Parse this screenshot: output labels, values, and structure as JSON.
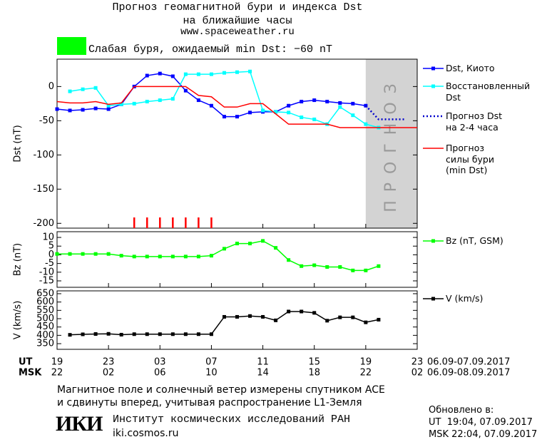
{
  "header": {
    "title": "Прогноз геомагнитной бури и индекса Dst\nна ближайшие часы",
    "url": "www.spaceweather.ru",
    "storm_color": "#00ff00",
    "storm_text": "Слабая буря, ожидаемый min Dst: −60 nT"
  },
  "chart_data": [
    {
      "type": "line",
      "y_label": "Dst (nT)",
      "xlim": [
        0,
        28
      ],
      "ylim": [
        -207,
        40
      ],
      "yticks": [
        0,
        -50,
        -100,
        -150,
        -200
      ],
      "forecast_region": {
        "x": [
          24,
          28
        ],
        "color": "#d3d3d3",
        "label": "ПРОГНОЗ"
      },
      "storm_marks": {
        "x": [
          6,
          7,
          8,
          9,
          10,
          11,
          12
        ],
        "color": "#ff0000"
      },
      "series": [
        {
          "name": "Dst, Киото",
          "color": "#0000ff",
          "marker": "square",
          "style": "solid",
          "x": [
            0,
            1,
            2,
            3,
            4,
            5,
            6,
            7,
            8,
            9,
            10,
            11,
            12,
            13,
            14,
            15,
            16,
            17,
            18,
            19,
            20,
            21,
            22,
            23,
            24
          ],
          "values": [
            -33,
            -35,
            -34,
            -32,
            -33,
            -26,
            0,
            16,
            19,
            15,
            -6,
            -20,
            -28,
            -44,
            -44,
            -38,
            -37,
            -37,
            -28,
            -22,
            -20,
            -22,
            -24,
            -25,
            -28
          ]
        },
        {
          "name": "Восстановленный\nDst",
          "color": "#00ffff",
          "marker": "square",
          "style": "solid",
          "x": [
            1,
            2,
            3,
            4,
            5,
            6,
            7,
            8,
            9,
            10,
            11,
            12,
            13,
            14,
            15,
            16,
            17,
            18,
            19,
            20,
            21,
            22,
            23,
            24,
            25
          ],
          "values": [
            -7,
            -4,
            -2,
            -28,
            -26,
            -25,
            -22,
            -20,
            -18,
            18,
            18,
            18,
            20,
            21,
            22,
            -35,
            -37,
            -38,
            -45,
            -48,
            -55,
            -30,
            -42,
            -55,
            -60
          ]
        },
        {
          "name": "Прогноз Dst\nна 2-4 часа",
          "color": "#0000cc",
          "marker": "none",
          "style": "dotted",
          "x": [
            24,
            25,
            27
          ],
          "values": [
            -28,
            -48,
            -48
          ]
        },
        {
          "name": "Прогноз\nсилы бури\n(min Dst)",
          "color": "#ff0000",
          "marker": "none",
          "style": "solid",
          "x": [
            0,
            1,
            2,
            3,
            4,
            5,
            6,
            10,
            11,
            12,
            13,
            14,
            15,
            16,
            17,
            18,
            21,
            22,
            28
          ],
          "values": [
            -22,
            -24,
            -24,
            -22,
            -26,
            -24,
            0,
            0,
            -13,
            -15,
            -30,
            -30,
            -25,
            -25,
            -40,
            -55,
            -55,
            -60,
            -60
          ]
        }
      ]
    },
    {
      "type": "line",
      "y_label": "Bz (nT)",
      "xlim": [
        0,
        28
      ],
      "ylim": [
        -18.7,
        13.3
      ],
      "yticks": [
        10,
        5,
        0,
        -5,
        -10,
        -15
      ],
      "series": [
        {
          "name": "Bz (nT, GSM)",
          "color": "#00ff00",
          "marker": "square",
          "style": "solid",
          "x": [
            0,
            1,
            2,
            3,
            4,
            5,
            6,
            7,
            8,
            9,
            10,
            11,
            12,
            13,
            14,
            15,
            16,
            17,
            18,
            19,
            20,
            21,
            22,
            23,
            24,
            25
          ],
          "values": [
            0.5,
            0.5,
            0.5,
            0.5,
            0.5,
            -0.5,
            -1,
            -1,
            -1,
            -1,
            -1,
            -1,
            -0.5,
            3.5,
            6.5,
            6.5,
            8,
            4,
            -3,
            -6.5,
            -6,
            -7,
            -7,
            -9,
            -9,
            -6.5
          ]
        }
      ]
    },
    {
      "type": "line",
      "y_label": "V (km/s)",
      "xlim": [
        0,
        28
      ],
      "ylim": [
        316,
        667
      ],
      "yticks": [
        650,
        600,
        550,
        500,
        450,
        400,
        350
      ],
      "series": [
        {
          "name": "V (km/s)",
          "color": "#000000",
          "marker": "square",
          "style": "solid",
          "x": [
            1,
            2,
            3,
            4,
            5,
            6,
            7,
            8,
            9,
            10,
            11,
            12,
            13,
            14,
            15,
            16,
            17,
            18,
            19,
            20,
            21,
            22,
            23,
            24,
            25
          ],
          "values": [
            403,
            406,
            408,
            409,
            404,
            407,
            407,
            407,
            407,
            407,
            407,
            407,
            511,
            511,
            516,
            511,
            490,
            543,
            543,
            535,
            488,
            508,
            508,
            478,
            494
          ]
        }
      ]
    }
  ],
  "time_axis": {
    "ut_label": "UT",
    "msk_label": "MSK",
    "ut_ticks": [
      {
        "value": 0,
        "label": "19"
      },
      {
        "value": 4,
        "label": "23"
      },
      {
        "value": 8,
        "label": "03"
      },
      {
        "value": 12,
        "label": "07"
      },
      {
        "value": 16,
        "label": "11"
      },
      {
        "value": 20,
        "label": "15"
      },
      {
        "value": 24,
        "label": "19"
      },
      {
        "value": 28,
        "label": "23"
      }
    ],
    "msk_ticks": [
      {
        "value": 0,
        "label": "22"
      },
      {
        "value": 4,
        "label": "02"
      },
      {
        "value": 8,
        "label": "06"
      },
      {
        "value": 12,
        "label": "10"
      },
      {
        "value": 16,
        "label": "14"
      },
      {
        "value": 20,
        "label": "18"
      },
      {
        "value": 24,
        "label": "22"
      },
      {
        "value": 28,
        "label": "02"
      }
    ],
    "ut_range": "06.09-07.09.2017",
    "msk_range": "06.09-08.09.2017"
  },
  "footer": {
    "note": "Магнитное поле и солнечный ветер измерены спутником ACE\nи сдвинуты вперед, учитывая распространение L1-Земля",
    "logo": "ИКИ",
    "institute": "Институт космических исследований РАН",
    "site": "iki.cosmos.ru",
    "updated_label": "Обновлено в:",
    "updated_ut": "UT  19:04, 07.09.2017",
    "updated_msk": "MSK 22:04, 07.09.2017"
  }
}
